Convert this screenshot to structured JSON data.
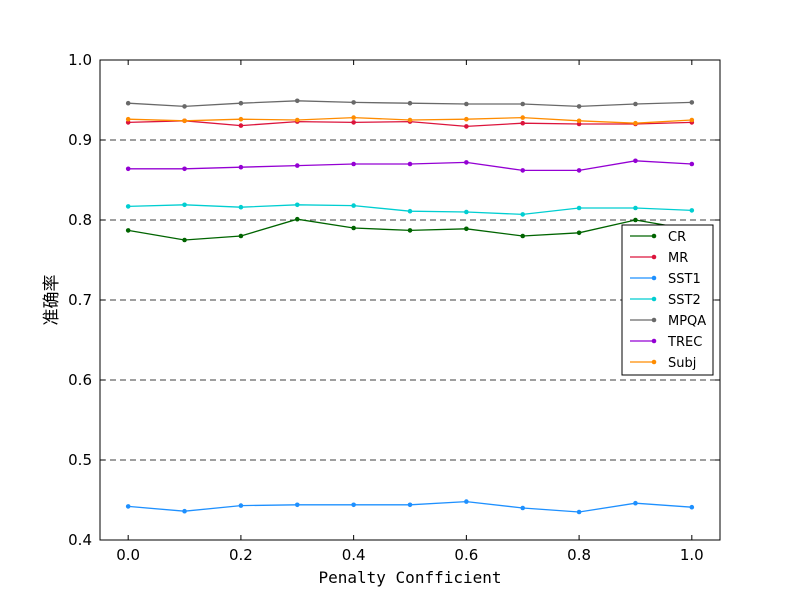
{
  "chart_data": {
    "type": "line",
    "title": "",
    "xlabel": "Penalty Confficient",
    "ylabel": "准确率",
    "xlim": [
      -0.05,
      1.05
    ],
    "ylim": [
      0.4,
      1.0
    ],
    "xticks": [
      0.0,
      0.2,
      0.4,
      0.6,
      0.8,
      1.0
    ],
    "xtick_labels": [
      "0.0",
      "0.2",
      "0.4",
      "0.6",
      "0.8",
      "1.0"
    ],
    "yticks": [
      0.4,
      0.5,
      0.6,
      0.7,
      0.8,
      0.9,
      1.0
    ],
    "ytick_labels": [
      "0.4",
      "0.5",
      "0.6",
      "0.7",
      "0.8",
      "0.9",
      "1.0"
    ],
    "grid": "horizontal dashed",
    "legend_position": "center-right",
    "x": [
      0.0,
      0.1,
      0.2,
      0.3,
      0.4,
      0.5,
      0.6,
      0.7,
      0.8,
      0.9,
      1.0
    ],
    "series": [
      {
        "name": "CR",
        "color": "#006400",
        "values": [
          0.787,
          0.775,
          0.78,
          0.801,
          0.79,
          0.787,
          0.789,
          0.78,
          0.784,
          0.8,
          0.788
        ]
      },
      {
        "name": "MR",
        "color": "#dc143c",
        "values": [
          0.922,
          0.924,
          0.918,
          0.923,
          0.922,
          0.923,
          0.917,
          0.921,
          0.92,
          0.92,
          0.922
        ]
      },
      {
        "name": "SST1",
        "color": "#1e90ff",
        "values": [
          0.442,
          0.436,
          0.443,
          0.444,
          0.444,
          0.444,
          0.448,
          0.44,
          0.435,
          0.446,
          0.441
        ]
      },
      {
        "name": "SST2",
        "color": "#00ced1",
        "values": [
          0.817,
          0.819,
          0.816,
          0.819,
          0.818,
          0.811,
          0.81,
          0.807,
          0.815,
          0.815,
          0.812
        ]
      },
      {
        "name": "MPQA",
        "color": "#696969",
        "values": [
          0.946,
          0.942,
          0.946,
          0.949,
          0.947,
          0.946,
          0.945,
          0.945,
          0.942,
          0.945,
          0.947
        ]
      },
      {
        "name": "TREC",
        "color": "#9400d3",
        "values": [
          0.864,
          0.864,
          0.866,
          0.868,
          0.87,
          0.87,
          0.872,
          0.862,
          0.862,
          0.874,
          0.87
        ]
      },
      {
        "name": "Subj",
        "color": "#ff8c00",
        "values": [
          0.926,
          0.924,
          0.926,
          0.925,
          0.928,
          0.925,
          0.926,
          0.928,
          0.924,
          0.921,
          0.925
        ]
      }
    ]
  }
}
